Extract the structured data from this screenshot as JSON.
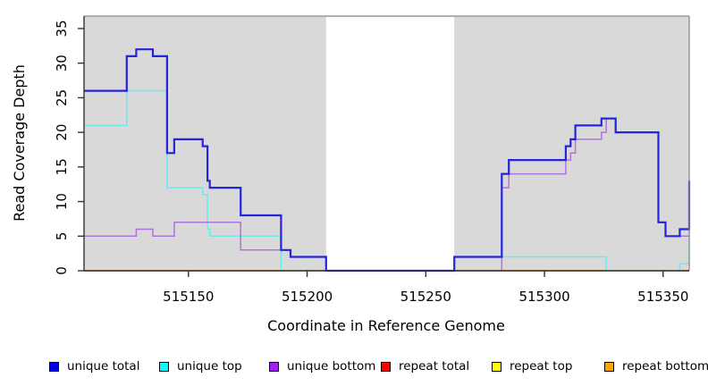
{
  "chart_data": {
    "type": "line",
    "subtype": "step-coverage-plot",
    "title": "",
    "xlabel": "Coordinate in Reference Genome",
    "ylabel": "Read Coverage Depth",
    "xlim": [
      515106,
      515361
    ],
    "ylim": [
      0,
      36.8
    ],
    "x_ticks": [
      515150,
      515200,
      515250,
      515300,
      515350
    ],
    "y_ticks": [
      0,
      5,
      10,
      15,
      20,
      25,
      30,
      35
    ],
    "grid": false,
    "legend_position": "bottom",
    "panel_bg": "#d9d9d9",
    "panel_border": "#8c8c8c",
    "axis_color": "#333333",
    "gap_region": {
      "from": 515208,
      "to": 515262,
      "fill": "#ffffff"
    },
    "draw_order": [
      3,
      4,
      5,
      1,
      2,
      0
    ],
    "series": [
      {
        "name": "unique total",
        "line_color": "#2424dd",
        "legend_color": "#0000ee",
        "width": 2.2,
        "steps": [
          [
            515106,
            26
          ],
          [
            515124,
            31
          ],
          [
            515128,
            32
          ],
          [
            515135,
            31
          ],
          [
            515141,
            17
          ],
          [
            515144,
            19
          ],
          [
            515156,
            18
          ],
          [
            515158,
            13
          ],
          [
            515159,
            12
          ],
          [
            515172,
            8
          ],
          [
            515189,
            3
          ],
          [
            515193,
            2
          ],
          [
            515208,
            0
          ],
          [
            515262,
            2
          ],
          [
            515282,
            14
          ],
          [
            515285,
            16
          ],
          [
            515309,
            18
          ],
          [
            515311,
            19
          ],
          [
            515313,
            21
          ],
          [
            515324,
            22
          ],
          [
            515330,
            20
          ],
          [
            515348,
            7
          ],
          [
            515351,
            5
          ],
          [
            515357,
            6
          ],
          [
            515361,
            13
          ]
        ]
      },
      {
        "name": "unique top",
        "line_color": "#6fe7ee",
        "legend_color": "#00ffff",
        "width": 1.5,
        "steps": [
          [
            515106,
            21
          ],
          [
            515124,
            26
          ],
          [
            515141,
            12
          ],
          [
            515156,
            11
          ],
          [
            515158,
            6
          ],
          [
            515159,
            5
          ],
          [
            515189,
            0
          ],
          [
            515262,
            2
          ],
          [
            515326,
            0
          ],
          [
            515357,
            1
          ],
          [
            515361,
            8
          ]
        ]
      },
      {
        "name": "unique bottom",
        "line_color": "#b173db",
        "legend_color": "#a020f0",
        "width": 1.5,
        "steps": [
          [
            515106,
            5
          ],
          [
            515128,
            6
          ],
          [
            515135,
            5
          ],
          [
            515144,
            7
          ],
          [
            515172,
            3
          ],
          [
            515193,
            2
          ],
          [
            515208,
            0
          ],
          [
            515282,
            12
          ],
          [
            515285,
            14
          ],
          [
            515309,
            16
          ],
          [
            515311,
            17
          ],
          [
            515313,
            19
          ],
          [
            515324,
            20
          ],
          [
            515326,
            22
          ],
          [
            515330,
            20
          ],
          [
            515348,
            7
          ],
          [
            515351,
            5
          ]
        ]
      },
      {
        "name": "repeat total",
        "line_color": "#dd2222",
        "legend_color": "#ff0000",
        "width": 1.5,
        "steps": [
          [
            515106,
            0
          ]
        ]
      },
      {
        "name": "repeat top",
        "line_color": "#f2e22a",
        "legend_color": "#ffff00",
        "width": 1.5,
        "steps": [
          [
            515106,
            0
          ]
        ]
      },
      {
        "name": "repeat bottom",
        "line_color": "#ff9d21",
        "legend_color": "#ffa500",
        "width": 2,
        "steps": [
          [
            515106,
            0
          ]
        ]
      }
    ]
  },
  "legend": {
    "items": [
      {
        "label": "unique total",
        "color": "#0000ee"
      },
      {
        "label": "unique top",
        "color": "#00ffff"
      },
      {
        "label": "unique bottom",
        "color": "#a020f0"
      },
      {
        "label": "repeat total",
        "color": "#ff0000"
      },
      {
        "label": "repeat top",
        "color": "#ffff00"
      },
      {
        "label": "repeat bottom",
        "color": "#ffa500"
      }
    ]
  }
}
